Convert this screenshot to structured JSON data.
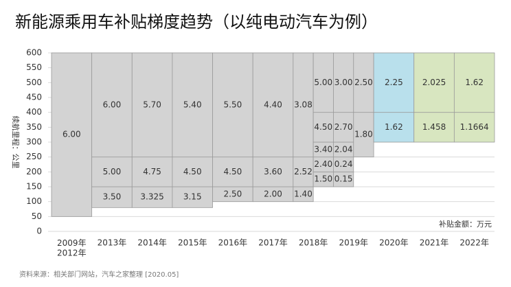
{
  "chart_data": {
    "type": "step_table",
    "title": "新能源乘用车补贴梯度趋势（以纯电动汽车为例）",
    "y_label": "续航里程：公里",
    "annotation": "补贴金额：万元",
    "source": "资料来源：相关部门网站，汽车之家整理 [2020.05]",
    "ylim": [
      0,
      600
    ],
    "yticks": [
      0,
      50,
      100,
      150,
      200,
      250,
      300,
      350,
      400,
      450,
      500,
      550,
      600
    ],
    "grid": true,
    "categories": [
      "2009年\n2012年",
      "2013年",
      "2014年",
      "2015年",
      "2016年",
      "2017年",
      "2018年",
      "2019年",
      "2020年",
      "2021年",
      "2022年"
    ],
    "columns": [
      {
        "color": "#d3d3d3",
        "groups": [
          [
            {
              "from": 50,
              "to": 600,
              "value": 6,
              "value_label": "6.00"
            }
          ]
        ]
      },
      {
        "color": "#d3d3d3",
        "groups": [
          [
            {
              "from": 80,
              "to": 150,
              "value": 3.5,
              "value_label": "3.50"
            },
            {
              "from": 150,
              "to": 250,
              "value": 5,
              "value_label": "5.00"
            },
            {
              "from": 250,
              "to": 600,
              "value": 6,
              "value_label": "6.00"
            }
          ]
        ]
      },
      {
        "color": "#d3d3d3",
        "groups": [
          [
            {
              "from": 80,
              "to": 150,
              "value": 3.325
            },
            {
              "from": 150,
              "to": 250,
              "value": 4.75
            },
            {
              "from": 250,
              "to": 600,
              "value": 5.7,
              "value_label": "5.70"
            }
          ]
        ]
      },
      {
        "color": "#d3d3d3",
        "groups": [
          [
            {
              "from": 80,
              "to": 150,
              "value": 3.15
            },
            {
              "from": 150,
              "to": 250,
              "value": 4.5,
              "value_label": "4.50"
            },
            {
              "from": 250,
              "to": 600,
              "value": 5.4,
              "value_label": "5.40"
            }
          ]
        ]
      },
      {
        "color": "#d3d3d3",
        "groups": [
          [
            {
              "from": 100,
              "to": 150,
              "value": 2.5,
              "value_label": "2.50"
            },
            {
              "from": 150,
              "to": 250,
              "value": 4.5,
              "value_label": "4.50"
            },
            {
              "from": 250,
              "to": 600,
              "value": 5.5,
              "value_label": "5.50"
            }
          ]
        ]
      },
      {
        "color": "#d3d3d3",
        "groups": [
          [
            {
              "from": 100,
              "to": 150,
              "value": 2,
              "value_label": "2.00"
            },
            {
              "from": 150,
              "to": 250,
              "value": 3.6,
              "value_label": "3.60"
            },
            {
              "from": 250,
              "to": 600,
              "value": 4.4,
              "value_label": "4.40"
            }
          ]
        ]
      },
      {
        "color": "#d3d3d3",
        "groups": [
          [
            {
              "from": 100,
              "to": 150,
              "value": 1.4,
              "value_label": "1.40"
            },
            {
              "from": 150,
              "to": 250,
              "value": 2.52
            },
            {
              "from": 250,
              "to": 600,
              "value": 3.08
            }
          ],
          [
            {
              "from": 150,
              "to": 200,
              "value": 1.5,
              "value_label": "1.50"
            },
            {
              "from": 200,
              "to": 250,
              "value": 2.4,
              "value_label": "2.40"
            },
            {
              "from": 250,
              "to": 300,
              "value": 3.4,
              "value_label": "3.40"
            },
            {
              "from": 300,
              "to": 400,
              "value": 4.5,
              "value_label": "4.50"
            },
            {
              "from": 400,
              "to": 600,
              "value": 5,
              "value_label": "5.00"
            }
          ]
        ]
      },
      {
        "color": "#d3d3d3",
        "groups": [
          [
            {
              "from": 150,
              "to": 200,
              "value": 0.15
            },
            {
              "from": 200,
              "to": 250,
              "value": 0.24
            },
            {
              "from": 250,
              "to": 300,
              "value": 2.04
            },
            {
              "from": 300,
              "to": 400,
              "value": 2.7,
              "value_label": "2.70"
            },
            {
              "from": 400,
              "to": 600,
              "value": 3,
              "value_label": "3.00"
            }
          ],
          [
            {
              "from": 250,
              "to": 400,
              "value": 1.8,
              "value_label": "1.80"
            },
            {
              "from": 400,
              "to": 600,
              "value": 2.5,
              "value_label": "2.50"
            }
          ]
        ]
      },
      {
        "color": "#b9e0ec",
        "groups": [
          [
            {
              "from": 300,
              "to": 400,
              "value": 1.62
            },
            {
              "from": 400,
              "to": 600,
              "value": 2.25
            }
          ]
        ]
      },
      {
        "color": "#d8e6c0",
        "groups": [
          [
            {
              "from": 300,
              "to": 400,
              "value": 1.458
            },
            {
              "from": 400,
              "to": 600,
              "value": 2.025
            }
          ]
        ]
      },
      {
        "color": "#d8e6c0",
        "groups": [
          [
            {
              "from": 300,
              "to": 400,
              "value": 1.1664
            },
            {
              "from": 400,
              "to": 600,
              "value": 1.62
            }
          ]
        ]
      }
    ]
  }
}
